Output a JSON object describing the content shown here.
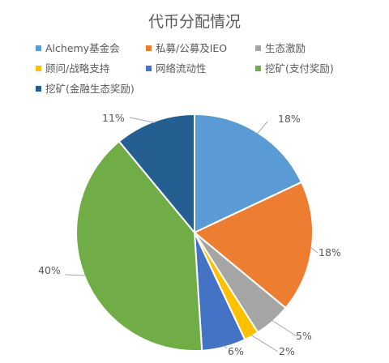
{
  "chart_data": {
    "type": "pie",
    "title": "代币分配情况",
    "legend_position": "top",
    "slices": [
      {
        "label": "Alchemy基金会",
        "value": 18,
        "display": "18%",
        "color": "#5b9bd5"
      },
      {
        "label": "私募/公募及IEO",
        "value": 18,
        "display": "18%",
        "color": "#ed7d31"
      },
      {
        "label": "生态激励",
        "value": 5,
        "display": "5%",
        "color": "#a5a5a5"
      },
      {
        "label": "顾问/战略支持",
        "value": 2,
        "display": "2%",
        "color": "#ffc000"
      },
      {
        "label": "网络流动性",
        "value": 6,
        "display": "6%",
        "color": "#4472c4"
      },
      {
        "label": "挖矿(支付奖励)",
        "value": 40,
        "display": "40%",
        "color": "#70ad47"
      },
      {
        "label": "挖矿(金融生态奖励)",
        "value": 11,
        "display": "11%",
        "color": "#255e91"
      }
    ]
  }
}
